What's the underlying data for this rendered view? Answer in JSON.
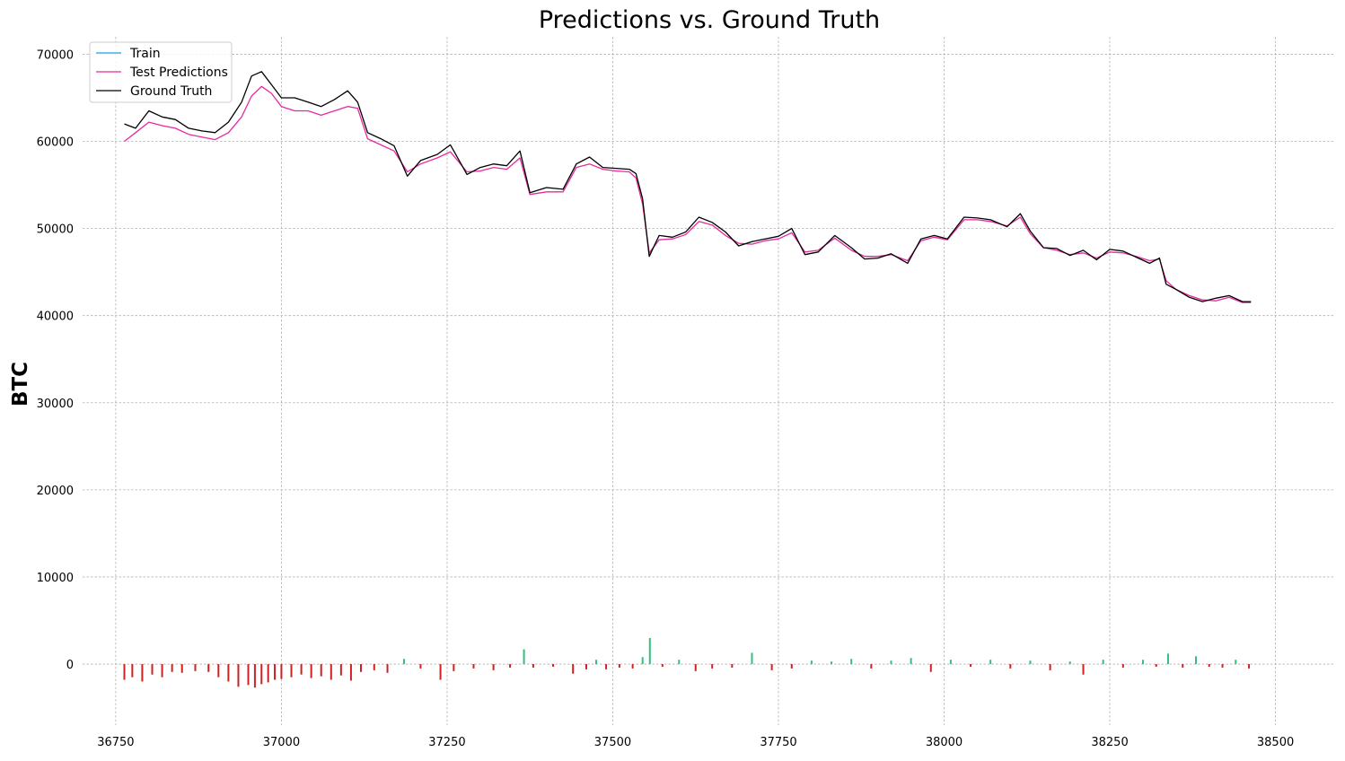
{
  "chart_data": {
    "type": "line",
    "title": "Predictions vs. Ground Truth",
    "xlabel": "",
    "ylabel": "BTC",
    "xlim": [
      36700,
      38590
    ],
    "ylim": [
      -7000,
      72000
    ],
    "x_ticks": [
      {
        "value": 36750,
        "label": "36750"
      },
      {
        "value": 37000,
        "label": "37000"
      },
      {
        "value": 37250,
        "label": "37250"
      },
      {
        "value": 37500,
        "label": "37500"
      },
      {
        "value": 37750,
        "label": "37750"
      },
      {
        "value": 38000,
        "label": "38000"
      },
      {
        "value": 38250,
        "label": "38250"
      },
      {
        "value": 38500,
        "label": "38500"
      }
    ],
    "y_ticks": [
      {
        "value": 0,
        "label": "0"
      },
      {
        "value": 10000,
        "label": "10000"
      },
      {
        "value": 20000,
        "label": "20000"
      },
      {
        "value": 30000,
        "label": "30000"
      },
      {
        "value": 40000,
        "label": "40000"
      },
      {
        "value": 50000,
        "label": "50000"
      },
      {
        "value": 60000,
        "label": "60000"
      },
      {
        "value": 70000,
        "label": "70000"
      }
    ],
    "grid": true,
    "legend_position": "top-left",
    "series": [
      {
        "name": "Train",
        "color": "#1f9ee8",
        "x": [],
        "y": []
      },
      {
        "name": "Test Predictions",
        "color": "#e8299e",
        "x": [
          36763,
          36780,
          36800,
          36820,
          36840,
          36860,
          36880,
          36900,
          36920,
          36940,
          36955,
          36970,
          36985,
          37000,
          37020,
          37040,
          37060,
          37080,
          37100,
          37115,
          37130,
          37150,
          37170,
          37190,
          37210,
          37235,
          37255,
          37280,
          37300,
          37320,
          37340,
          37360,
          37375,
          37400,
          37425,
          37445,
          37465,
          37485,
          37505,
          37525,
          37535,
          37545,
          37555,
          37570,
          37590,
          37610,
          37630,
          37650,
          37670,
          37690,
          37710,
          37730,
          37750,
          37770,
          37790,
          37810,
          37835,
          37860,
          37880,
          37900,
          37920,
          37945,
          37965,
          37985,
          38005,
          38030,
          38050,
          38070,
          38095,
          38115,
          38130,
          38150,
          38170,
          38190,
          38210,
          38230,
          38250,
          38270,
          38290,
          38310,
          38325,
          38335,
          38350,
          38370,
          38390,
          38410,
          38430,
          38450,
          38463
        ],
        "y": [
          60000,
          61000,
          62200,
          61800,
          61500,
          60800,
          60500,
          60200,
          61000,
          62800,
          65200,
          66300,
          65500,
          64000,
          63500,
          63500,
          63000,
          63500,
          64000,
          63800,
          60300,
          59600,
          58900,
          56500,
          57400,
          58100,
          58800,
          56500,
          56600,
          57000,
          56800,
          58100,
          53900,
          54200,
          54200,
          57000,
          57400,
          56800,
          56600,
          56500,
          55800,
          52800,
          47200,
          48700,
          48800,
          49300,
          50800,
          50400,
          49200,
          48300,
          48200,
          48600,
          48800,
          49500,
          47300,
          47500,
          48900,
          47500,
          46800,
          46800,
          47000,
          46300,
          48600,
          49000,
          48700,
          51000,
          51000,
          50800,
          50300,
          51300,
          49400,
          47800,
          47500,
          47000,
          47200,
          46600,
          47300,
          47200,
          46800,
          46300,
          46500,
          44000,
          43000,
          42300,
          41800,
          41700,
          42100,
          41500,
          41500
        ]
      },
      {
        "name": "Ground Truth",
        "color": "#000000",
        "x": [
          36763,
          36780,
          36800,
          36820,
          36840,
          36860,
          36880,
          36900,
          36920,
          36940,
          36955,
          36970,
          36985,
          37000,
          37020,
          37040,
          37060,
          37080,
          37100,
          37115,
          37130,
          37150,
          37170,
          37190,
          37210,
          37235,
          37255,
          37280,
          37300,
          37320,
          37340,
          37360,
          37375,
          37400,
          37425,
          37445,
          37465,
          37485,
          37505,
          37525,
          37535,
          37545,
          37555,
          37570,
          37590,
          37610,
          37630,
          37650,
          37670,
          37690,
          37710,
          37730,
          37750,
          37770,
          37790,
          37810,
          37835,
          37860,
          37880,
          37900,
          37920,
          37945,
          37965,
          37985,
          38005,
          38030,
          38050,
          38070,
          38095,
          38115,
          38130,
          38150,
          38170,
          38190,
          38210,
          38230,
          38250,
          38270,
          38290,
          38310,
          38325,
          38335,
          38350,
          38370,
          38390,
          38410,
          38430,
          38450,
          38463
        ],
        "y": [
          62000,
          61500,
          63500,
          62800,
          62500,
          61500,
          61200,
          61000,
          62200,
          64500,
          67500,
          68000,
          66500,
          65000,
          65000,
          64500,
          64000,
          64800,
          65800,
          64500,
          61000,
          60300,
          59500,
          56000,
          57800,
          58500,
          59600,
          56200,
          57000,
          57400,
          57200,
          58900,
          54100,
          54700,
          54500,
          57400,
          58200,
          57000,
          56900,
          56800,
          56300,
          53400,
          46800,
          49200,
          49000,
          49600,
          51300,
          50700,
          49600,
          48000,
          48500,
          48800,
          49100,
          50000,
          47000,
          47300,
          49200,
          47800,
          46500,
          46600,
          47100,
          46000,
          48800,
          49200,
          48800,
          51300,
          51200,
          51000,
          50200,
          51700,
          49700,
          47800,
          47700,
          46900,
          47500,
          46400,
          47600,
          47400,
          46700,
          46000,
          46600,
          43600,
          43000,
          42100,
          41600,
          42000,
          42300,
          41600,
          41600
        ]
      }
    ],
    "difference_bars": {
      "positive_color": "#2ec27e",
      "negative_color": "#cc2222",
      "x": [
        36763,
        36775,
        36790,
        36805,
        36820,
        36835,
        36850,
        36870,
        36890,
        36905,
        36920,
        36935,
        36950,
        36960,
        36970,
        36980,
        36990,
        37000,
        37015,
        37030,
        37045,
        37060,
        37075,
        37090,
        37105,
        37120,
        37140,
        37160,
        37185,
        37210,
        37240,
        37260,
        37290,
        37320,
        37345,
        37366,
        37380,
        37410,
        37440,
        37460,
        37475,
        37490,
        37510,
        37530,
        37545,
        37556,
        37575,
        37600,
        37625,
        37650,
        37680,
        37710,
        37740,
        37770,
        37800,
        37830,
        37860,
        37890,
        37920,
        37950,
        37980,
        38010,
        38040,
        38070,
        38100,
        38130,
        38160,
        38190,
        38210,
        38240,
        38270,
        38300,
        38320,
        38338,
        38360,
        38380,
        38400,
        38420,
        38440,
        38460
      ],
      "values": [
        -1800,
        -1500,
        -2000,
        -1200,
        -1500,
        -900,
        -1000,
        -800,
        -900,
        -1500,
        -2000,
        -2600,
        -2400,
        -2700,
        -2300,
        -2100,
        -1800,
        -1700,
        -1500,
        -1200,
        -1600,
        -1400,
        -1800,
        -1300,
        -1900,
        -900,
        -700,
        -1000,
        600,
        -500,
        -1800,
        -800,
        -500,
        -700,
        -400,
        1700,
        -400,
        -300,
        -1100,
        -600,
        500,
        -600,
        -400,
        -500,
        800,
        3000,
        -300,
        500,
        -800,
        -500,
        -400,
        1300,
        -700,
        -500,
        400,
        300,
        600,
        -500,
        400,
        700,
        -900,
        500,
        -300,
        500,
        -500,
        400,
        -700,
        300,
        -1200,
        500,
        -400,
        500,
        -300,
        1200,
        -400,
        900,
        -300,
        -400,
        500,
        -500
      ]
    }
  }
}
